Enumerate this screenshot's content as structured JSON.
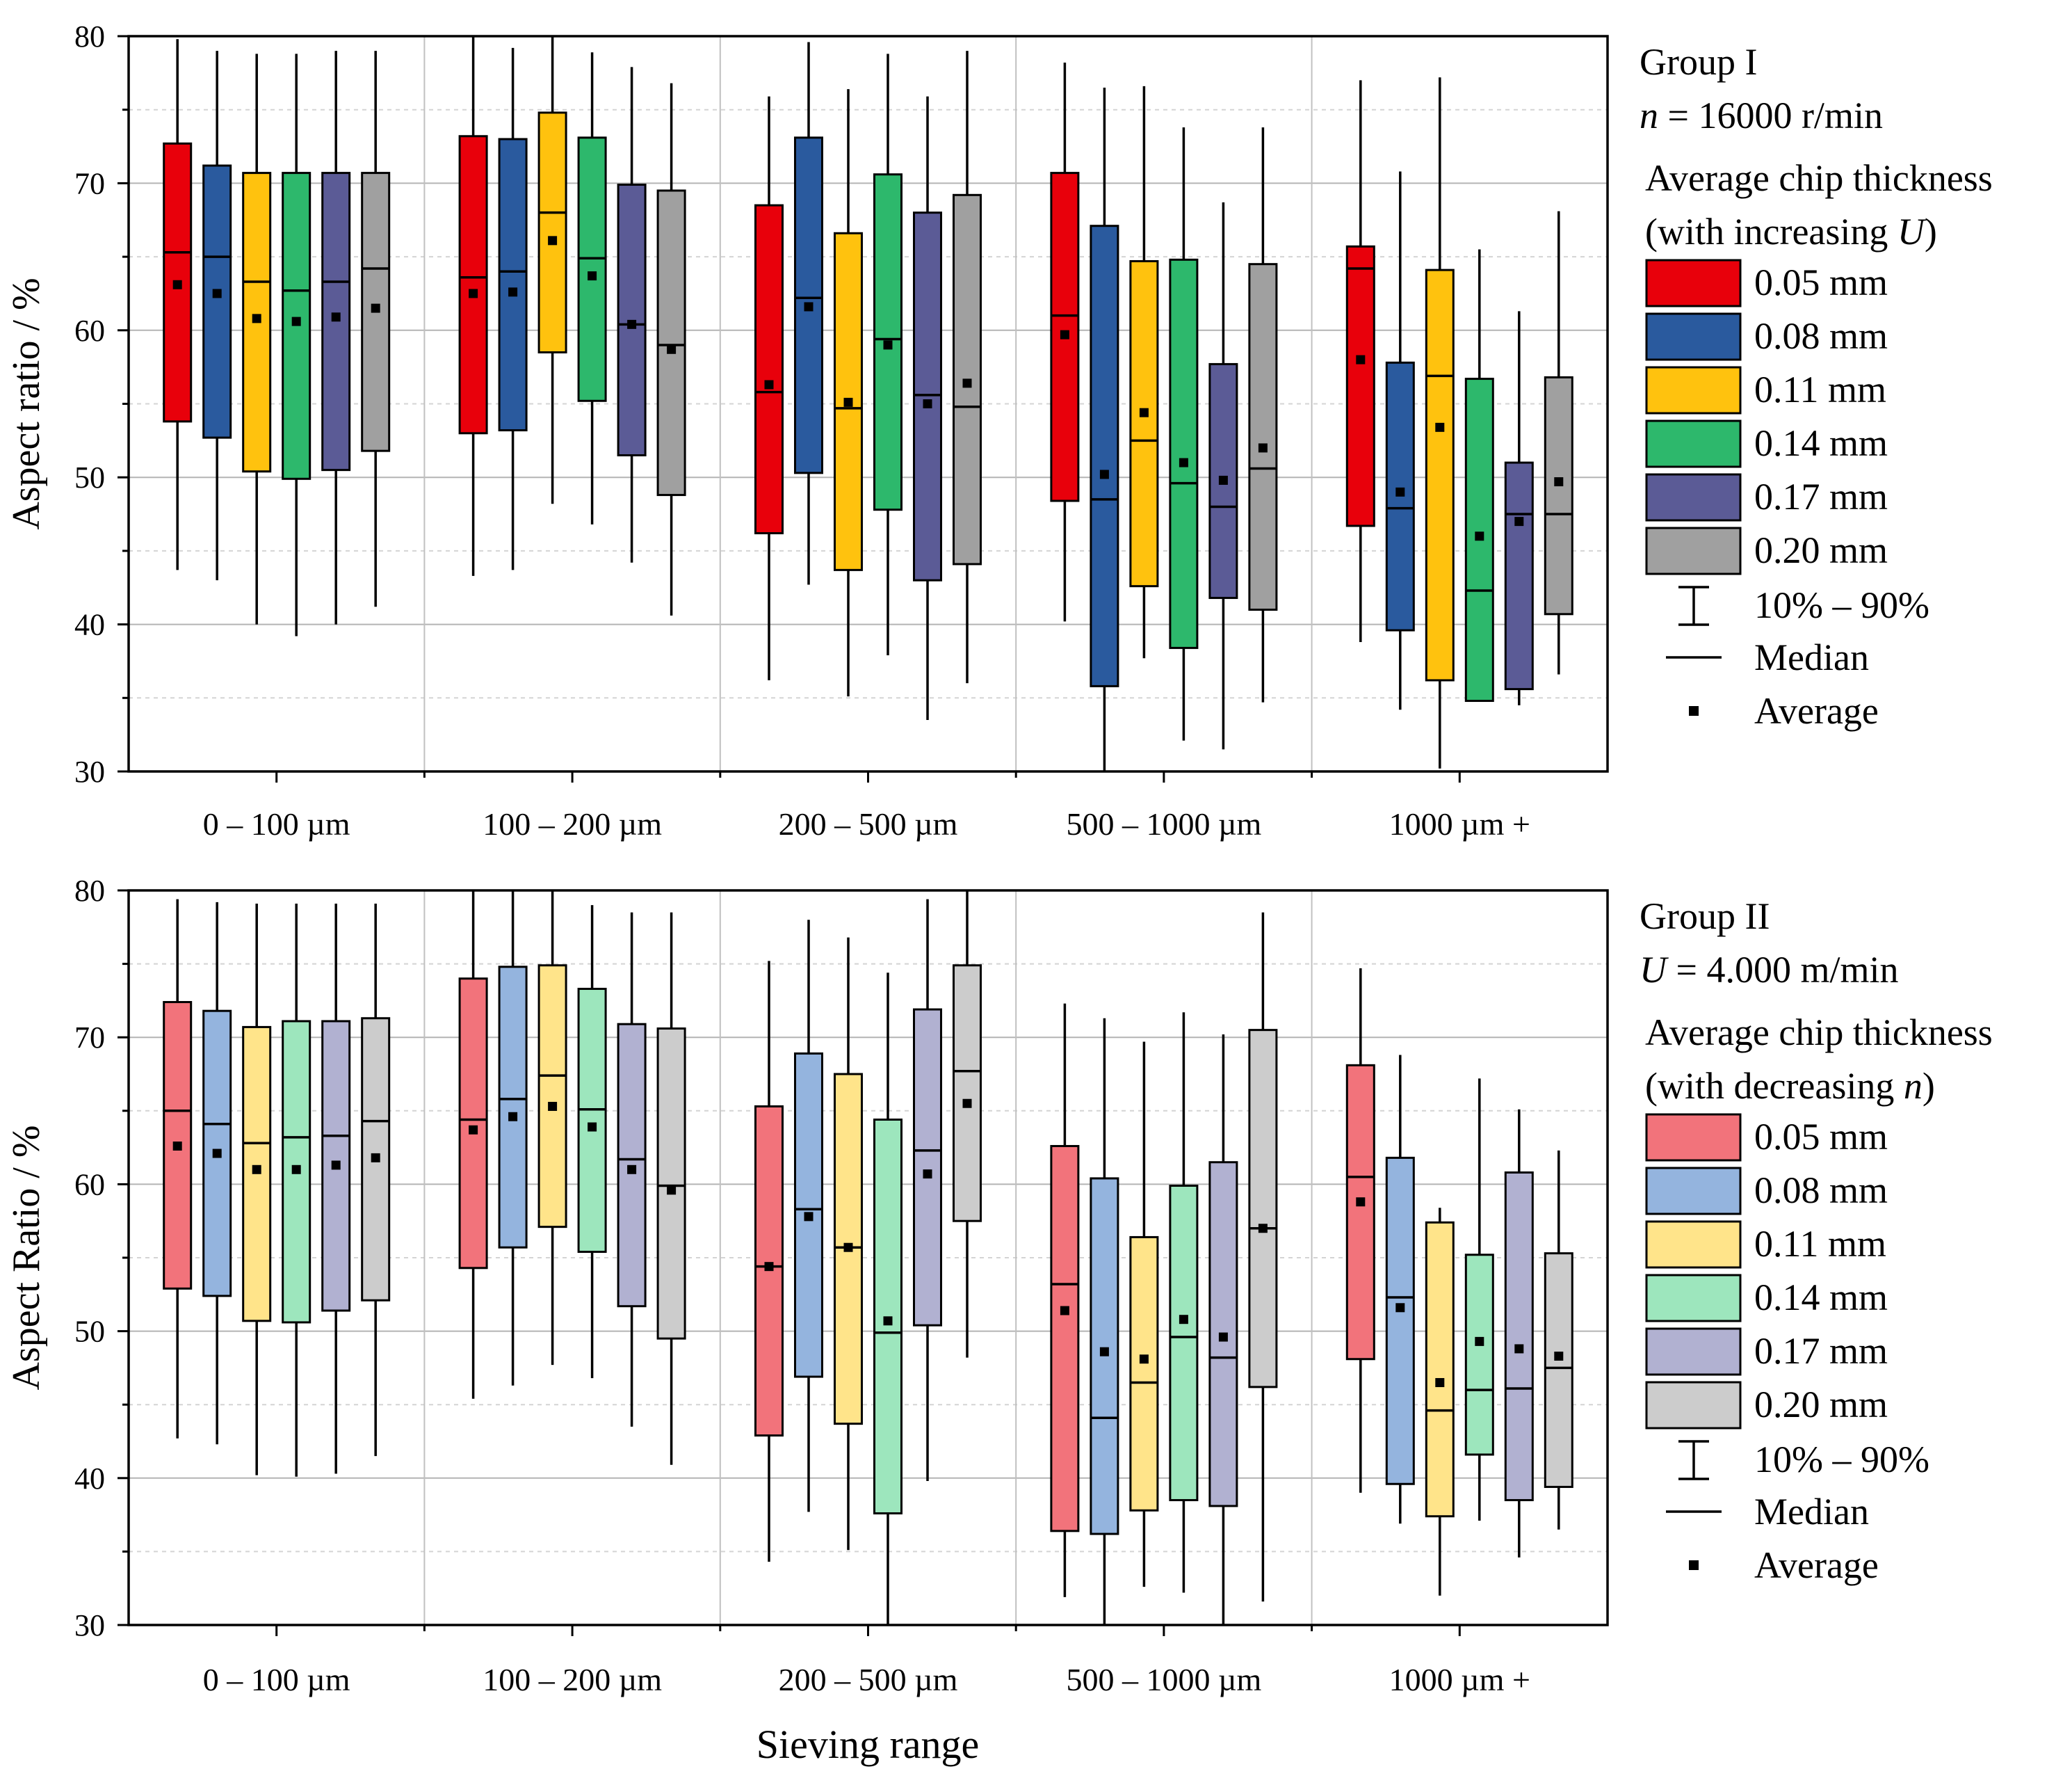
{
  "chart_data": [
    {
      "type": "boxplot",
      "panel": "top",
      "ylabel": "Aspect ratio / %",
      "ylim": [
        30,
        80
      ],
      "yticks": [
        30,
        40,
        50,
        60,
        70,
        80
      ],
      "categories": [
        "0 – 100 µm",
        "100 – 200 µm",
        "200 – 500 µm",
        "500 – 1000 µm",
        "1000 µm +"
      ],
      "legend": {
        "title_line1": "Group I",
        "title_line2_var": "n",
        "title_line2_rest": " = 16000 r/min",
        "subtitle_line1": "Average chip thickness",
        "subtitle_line2_pre": "(with increasing ",
        "subtitle_line2_var": "U",
        "subtitle_line2_post": ")",
        "whisker_label": "10% – 90%",
        "median_label": "Median",
        "average_label": "Average"
      },
      "series": [
        {
          "name": "0.05 mm",
          "color": "#e8000b",
          "boxes": [
            {
              "p10": 43.7,
              "q1": 53.8,
              "median": 65.3,
              "q3": 72.7,
              "p90": 79.8,
              "mean": 63.1
            },
            {
              "p10": 43.3,
              "q1": 53.0,
              "median": 63.6,
              "q3": 73.2,
              "p90": 80.0,
              "mean": 62.5
            },
            {
              "p10": 36.2,
              "q1": 46.2,
              "median": 55.8,
              "q3": 68.5,
              "p90": 75.9,
              "mean": 56.3
            },
            {
              "p10": 40.2,
              "q1": 48.4,
              "median": 61.0,
              "q3": 70.7,
              "p90": 78.2,
              "mean": 59.7
            },
            {
              "p10": 38.8,
              "q1": 46.7,
              "median": 64.2,
              "q3": 65.7,
              "p90": 77.0,
              "mean": 58.0
            }
          ]
        },
        {
          "name": "0.08 mm",
          "color": "#2a5a9e",
          "boxes": [
            {
              "p10": 43.0,
              "q1": 52.7,
              "median": 65.0,
              "q3": 71.2,
              "p90": 79.0,
              "mean": 62.5
            },
            {
              "p10": 43.7,
              "q1": 53.2,
              "median": 64.0,
              "q3": 73.0,
              "p90": 79.2,
              "mean": 62.6
            },
            {
              "p10": 42.7,
              "q1": 50.3,
              "median": 62.2,
              "q3": 73.1,
              "p90": 79.6,
              "mean": 61.6
            },
            {
              "p10": 30.0,
              "q1": 35.8,
              "median": 48.5,
              "q3": 67.1,
              "p90": 76.5,
              "mean": 50.2
            },
            {
              "p10": 34.2,
              "q1": 39.6,
              "median": 47.9,
              "q3": 57.8,
              "p90": 70.8,
              "mean": 49.0
            }
          ]
        },
        {
          "name": "0.11 mm",
          "color": "#ffc20e",
          "boxes": [
            {
              "p10": 40.0,
              "q1": 50.4,
              "median": 63.3,
              "q3": 70.7,
              "p90": 78.8,
              "mean": 60.8
            },
            {
              "p10": 48.2,
              "q1": 58.5,
              "median": 68.0,
              "q3": 74.8,
              "p90": 80.0,
              "mean": 66.1
            },
            {
              "p10": 35.1,
              "q1": 43.7,
              "median": 54.7,
              "q3": 66.6,
              "p90": 76.4,
              "mean": 55.1
            },
            {
              "p10": 37.7,
              "q1": 42.6,
              "median": 52.5,
              "q3": 64.7,
              "p90": 76.6,
              "mean": 54.4
            },
            {
              "p10": 30.2,
              "q1": 36.2,
              "median": 56.9,
              "q3": 64.1,
              "p90": 77.2,
              "mean": 53.4
            }
          ]
        },
        {
          "name": "0.14 mm",
          "color": "#2db86c",
          "boxes": [
            {
              "p10": 39.2,
              "q1": 49.9,
              "median": 62.7,
              "q3": 70.7,
              "p90": 78.8,
              "mean": 60.6
            },
            {
              "p10": 46.8,
              "q1": 55.2,
              "median": 64.9,
              "q3": 73.1,
              "p90": 78.9,
              "mean": 63.7
            },
            {
              "p10": 37.9,
              "q1": 47.8,
              "median": 59.4,
              "q3": 70.6,
              "p90": 78.8,
              "mean": 59.0
            },
            {
              "p10": 32.1,
              "q1": 38.4,
              "median": 49.6,
              "q3": 64.8,
              "p90": 73.8,
              "mean": 51.0
            },
            {
              "p10": 34.8,
              "q1": 34.8,
              "median": 42.3,
              "q3": 56.7,
              "p90": 65.5,
              "mean": 46.0
            }
          ]
        },
        {
          "name": "0.17 mm",
          "color": "#5b5b96",
          "boxes": [
            {
              "p10": 40.0,
              "q1": 50.5,
              "median": 63.3,
              "q3": 70.7,
              "p90": 79.0,
              "mean": 60.9
            },
            {
              "p10": 44.2,
              "q1": 51.5,
              "median": 60.4,
              "q3": 69.9,
              "p90": 77.9,
              "mean": 60.4
            },
            {
              "p10": 33.5,
              "q1": 43.0,
              "median": 55.6,
              "q3": 68.0,
              "p90": 75.9,
              "mean": 55.0
            },
            {
              "p10": 31.5,
              "q1": 41.8,
              "median": 48.0,
              "q3": 57.7,
              "p90": 68.7,
              "mean": 49.8
            },
            {
              "p10": 34.5,
              "q1": 35.6,
              "median": 47.5,
              "q3": 51.0,
              "p90": 61.3,
              "mean": 47.0
            }
          ]
        },
        {
          "name": "0.20 mm",
          "color": "#a0a0a0",
          "boxes": [
            {
              "p10": 41.2,
              "q1": 51.8,
              "median": 64.2,
              "q3": 70.7,
              "p90": 79.0,
              "mean": 61.5
            },
            {
              "p10": 40.6,
              "q1": 48.8,
              "median": 59.0,
              "q3": 69.5,
              "p90": 76.8,
              "mean": 58.7
            },
            {
              "p10": 36.0,
              "q1": 44.1,
              "median": 54.8,
              "q3": 69.2,
              "p90": 79.0,
              "mean": 56.4
            },
            {
              "p10": 34.7,
              "q1": 41.0,
              "median": 50.6,
              "q3": 64.5,
              "p90": 73.8,
              "mean": 52.0
            },
            {
              "p10": 36.6,
              "q1": 40.7,
              "median": 47.5,
              "q3": 56.8,
              "p90": 68.1,
              "mean": 49.7
            }
          ]
        }
      ]
    },
    {
      "type": "boxplot",
      "panel": "bottom",
      "ylabel": "Aspect Ratio / %",
      "xlabel": "Sieving range",
      "ylim": [
        30,
        80
      ],
      "yticks": [
        30,
        40,
        50,
        60,
        70,
        80
      ],
      "categories": [
        "0 – 100 µm",
        "100 – 200 µm",
        "200 – 500 µm",
        "500 – 1000 µm",
        "1000 µm +"
      ],
      "legend": {
        "title_line1": "Group II",
        "title_line2_var": "U",
        "title_line2_rest": " = 4.000 m/min",
        "subtitle_line1": "Average chip thickness",
        "subtitle_line2_pre": "(with decreasing ",
        "subtitle_line2_var": "n",
        "subtitle_line2_post": ")",
        "whisker_label": "10% – 90%",
        "median_label": "Median",
        "average_label": "Average"
      },
      "series": [
        {
          "name": "0.05 mm",
          "color": "#f2737b",
          "boxes": [
            {
              "p10": 42.7,
              "q1": 52.9,
              "median": 65.0,
              "q3": 72.4,
              "p90": 79.4,
              "mean": 62.6
            },
            {
              "p10": 45.4,
              "q1": 54.3,
              "median": 64.4,
              "q3": 74.0,
              "p90": 80.0,
              "mean": 63.7
            },
            {
              "p10": 34.3,
              "q1": 42.9,
              "median": 54.4,
              "q3": 65.3,
              "p90": 75.2,
              "mean": 54.4
            },
            {
              "p10": 31.9,
              "q1": 36.4,
              "median": 53.2,
              "q3": 62.6,
              "p90": 72.3,
              "mean": 51.4
            },
            {
              "p10": 39.0,
              "q1": 48.1,
              "median": 60.5,
              "q3": 68.1,
              "p90": 74.7,
              "mean": 58.8
            }
          ]
        },
        {
          "name": "0.08 mm",
          "color": "#94b4de",
          "boxes": [
            {
              "p10": 42.3,
              "q1": 52.4,
              "median": 64.1,
              "q3": 71.8,
              "p90": 79.2,
              "mean": 62.1
            },
            {
              "p10": 46.3,
              "q1": 55.7,
              "median": 65.8,
              "q3": 74.8,
              "p90": 80.0,
              "mean": 64.6
            },
            {
              "p10": 37.7,
              "q1": 46.9,
              "median": 58.3,
              "q3": 68.9,
              "p90": 78.0,
              "mean": 57.8
            },
            {
              "p10": 30.0,
              "q1": 36.2,
              "median": 44.1,
              "q3": 60.4,
              "p90": 71.3,
              "mean": 48.6
            },
            {
              "p10": 36.9,
              "q1": 39.6,
              "median": 52.3,
              "q3": 61.8,
              "p90": 68.8,
              "mean": 51.6
            }
          ]
        },
        {
          "name": "0.11 mm",
          "color": "#ffe48a",
          "boxes": [
            {
              "p10": 40.2,
              "q1": 50.7,
              "median": 62.8,
              "q3": 70.7,
              "p90": 79.1,
              "mean": 61.0
            },
            {
              "p10": 47.7,
              "q1": 57.1,
              "median": 67.4,
              "q3": 74.9,
              "p90": 80.0,
              "mean": 65.3
            },
            {
              "p10": 35.1,
              "q1": 43.7,
              "median": 55.7,
              "q3": 67.5,
              "p90": 76.8,
              "mean": 55.7
            },
            {
              "p10": 32.6,
              "q1": 37.8,
              "median": 46.5,
              "q3": 56.4,
              "p90": 69.7,
              "mean": 48.1
            },
            {
              "p10": 32.0,
              "q1": 37.4,
              "median": 44.6,
              "q3": 57.4,
              "p90": 58.4,
              "mean": 46.5
            }
          ]
        },
        {
          "name": "0.14 mm",
          "color": "#9de6bd",
          "boxes": [
            {
              "p10": 40.1,
              "q1": 50.6,
              "median": 63.2,
              "q3": 71.1,
              "p90": 79.1,
              "mean": 61.0
            },
            {
              "p10": 46.8,
              "q1": 55.4,
              "median": 65.1,
              "q3": 73.3,
              "p90": 79.0,
              "mean": 63.9
            },
            {
              "p10": 30.0,
              "q1": 37.6,
              "median": 49.9,
              "q3": 64.4,
              "p90": 74.4,
              "mean": 50.7
            },
            {
              "p10": 32.2,
              "q1": 38.5,
              "median": 49.6,
              "q3": 59.9,
              "p90": 71.7,
              "mean": 50.8
            },
            {
              "p10": 37.1,
              "q1": 41.6,
              "median": 46.0,
              "q3": 55.2,
              "p90": 67.2,
              "mean": 49.3
            }
          ]
        },
        {
          "name": "0.17 mm",
          "color": "#b1b1d1",
          "boxes": [
            {
              "p10": 40.3,
              "q1": 51.4,
              "median": 63.3,
              "q3": 71.1,
              "p90": 79.1,
              "mean": 61.3
            },
            {
              "p10": 43.5,
              "q1": 51.7,
              "median": 61.7,
              "q3": 70.9,
              "p90": 78.5,
              "mean": 61.0
            },
            {
              "p10": 39.8,
              "q1": 50.4,
              "median": 62.3,
              "q3": 71.9,
              "p90": 79.4,
              "mean": 60.7
            },
            {
              "p10": 30.0,
              "q1": 38.1,
              "median": 48.2,
              "q3": 61.5,
              "p90": 70.2,
              "mean": 49.6
            },
            {
              "p10": 34.6,
              "q1": 38.5,
              "median": 46.1,
              "q3": 60.8,
              "p90": 65.1,
              "mean": 48.8
            }
          ]
        },
        {
          "name": "0.20 mm",
          "color": "#cccccc",
          "boxes": [
            {
              "p10": 41.5,
              "q1": 52.1,
              "median": 64.3,
              "q3": 71.3,
              "p90": 79.1,
              "mean": 61.8
            },
            {
              "p10": 40.9,
              "q1": 49.5,
              "median": 59.9,
              "q3": 70.6,
              "p90": 78.5,
              "mean": 59.6
            },
            {
              "p10": 48.2,
              "q1": 57.5,
              "median": 67.7,
              "q3": 74.9,
              "p90": 80.0,
              "mean": 65.5
            },
            {
              "p10": 31.6,
              "q1": 46.2,
              "median": 57.0,
              "q3": 70.5,
              "p90": 78.5,
              "mean": 57.0
            },
            {
              "p10": 36.5,
              "q1": 39.4,
              "median": 47.5,
              "q3": 55.3,
              "p90": 62.3,
              "mean": 48.3
            }
          ]
        }
      ]
    }
  ]
}
